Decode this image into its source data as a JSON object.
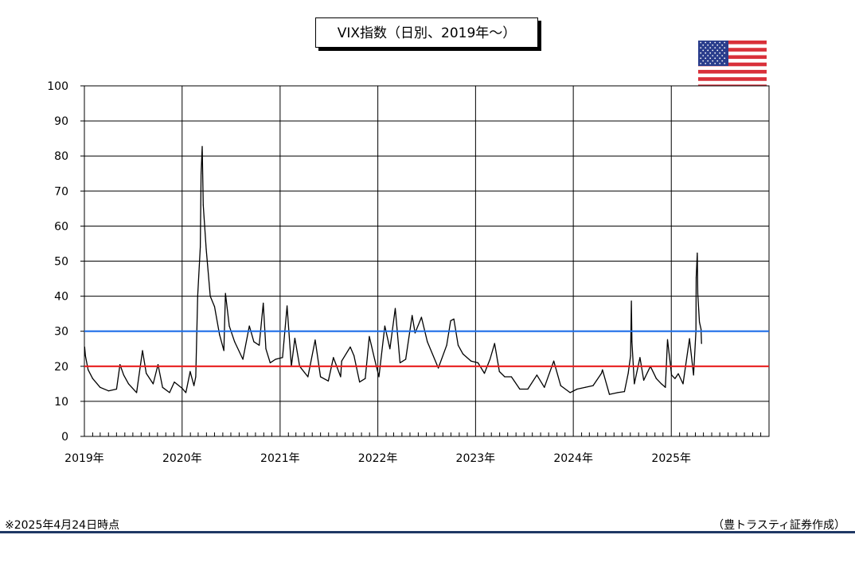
{
  "chart_data": {
    "type": "line",
    "title": "VIX指数（日別、2019年～）",
    "x_tick_labels": [
      "2019年",
      "2020年",
      "2021年",
      "2022年",
      "2023年",
      "2024年",
      "2025年"
    ],
    "y_tick_labels": [
      "0",
      "10",
      "20",
      "30",
      "40",
      "50",
      "60",
      "70",
      "80",
      "90",
      "100"
    ],
    "ylim": [
      0,
      100
    ],
    "xlim": [
      "2019-01-01",
      "2026-01-01"
    ],
    "grid": true,
    "series": [
      {
        "color": "#000000",
        "points": [
          [
            "2019-01-02",
            25.5
          ],
          [
            "2019-01-05",
            23.0
          ],
          [
            "2019-01-15",
            19.0
          ],
          [
            "2019-02-01",
            16.5
          ],
          [
            "2019-03-01",
            14.0
          ],
          [
            "2019-04-01",
            13.0
          ],
          [
            "2019-05-01",
            13.5
          ],
          [
            "2019-05-14",
            20.5
          ],
          [
            "2019-05-28",
            17.5
          ],
          [
            "2019-06-15",
            15.0
          ],
          [
            "2019-07-15",
            12.5
          ],
          [
            "2019-08-06",
            24.5
          ],
          [
            "2019-08-20",
            18.0
          ],
          [
            "2019-09-15",
            15.0
          ],
          [
            "2019-10-03",
            20.5
          ],
          [
            "2019-10-20",
            14.0
          ],
          [
            "2019-11-15",
            12.5
          ],
          [
            "2019-12-03",
            15.5
          ],
          [
            "2019-12-31",
            13.8
          ],
          [
            "2020-01-15",
            12.5
          ],
          [
            "2020-01-31",
            18.5
          ],
          [
            "2020-02-14",
            14.5
          ],
          [
            "2020-02-21",
            17.0
          ],
          [
            "2020-02-28",
            40.0
          ],
          [
            "2020-03-09",
            54.0
          ],
          [
            "2020-03-12",
            75.0
          ],
          [
            "2020-03-16",
            82.7
          ],
          [
            "2020-03-20",
            66.0
          ],
          [
            "2020-03-31",
            53.5
          ],
          [
            "2020-04-15",
            40.0
          ],
          [
            "2020-05-01",
            37.0
          ],
          [
            "2020-05-20",
            29.0
          ],
          [
            "2020-06-05",
            24.5
          ],
          [
            "2020-06-11",
            40.8
          ],
          [
            "2020-06-25",
            31.5
          ],
          [
            "2020-07-15",
            27.0
          ],
          [
            "2020-08-15",
            22.0
          ],
          [
            "2020-09-08",
            31.5
          ],
          [
            "2020-09-25",
            27.0
          ],
          [
            "2020-10-15",
            26.0
          ],
          [
            "2020-10-30",
            38.0
          ],
          [
            "2020-11-09",
            25.0
          ],
          [
            "2020-11-25",
            21.0
          ],
          [
            "2020-12-15",
            22.0
          ],
          [
            "2021-01-10",
            22.5
          ],
          [
            "2021-01-27",
            37.2
          ],
          [
            "2021-02-12",
            20.0
          ],
          [
            "2021-02-25",
            28.0
          ],
          [
            "2021-03-15",
            20.0
          ],
          [
            "2021-04-15",
            17.0
          ],
          [
            "2021-05-12",
            27.5
          ],
          [
            "2021-06-01",
            17.0
          ],
          [
            "2021-06-30",
            15.8
          ],
          [
            "2021-07-19",
            22.5
          ],
          [
            "2021-08-15",
            17.0
          ],
          [
            "2021-08-19",
            21.5
          ],
          [
            "2021-09-20",
            25.5
          ],
          [
            "2021-10-04",
            23.0
          ],
          [
            "2021-10-25",
            15.5
          ],
          [
            "2021-11-15",
            16.5
          ],
          [
            "2021-11-30",
            28.5
          ],
          [
            "2021-12-20",
            22.0
          ],
          [
            "2022-01-05",
            17.0
          ],
          [
            "2022-01-27",
            31.5
          ],
          [
            "2022-02-15",
            25.0
          ],
          [
            "2022-03-07",
            36.5
          ],
          [
            "2022-03-25",
            21.0
          ],
          [
            "2022-04-15",
            22.0
          ],
          [
            "2022-05-09",
            34.5
          ],
          [
            "2022-05-20",
            29.5
          ],
          [
            "2022-06-13",
            34.0
          ],
          [
            "2022-07-05",
            27.0
          ],
          [
            "2022-08-15",
            19.5
          ],
          [
            "2022-09-15",
            26.0
          ],
          [
            "2022-09-30",
            33.0
          ],
          [
            "2022-10-12",
            33.5
          ],
          [
            "2022-10-28",
            26.0
          ],
          [
            "2022-11-15",
            23.5
          ],
          [
            "2022-12-15",
            21.5
          ],
          [
            "2023-01-10",
            21.0
          ],
          [
            "2023-02-03",
            18.0
          ],
          [
            "2023-02-24",
            22.0
          ],
          [
            "2023-03-13",
            26.5
          ],
          [
            "2023-03-31",
            18.5
          ],
          [
            "2023-04-20",
            17.0
          ],
          [
            "2023-05-15",
            17.0
          ],
          [
            "2023-06-15",
            13.5
          ],
          [
            "2023-07-15",
            13.5
          ],
          [
            "2023-08-18",
            17.5
          ],
          [
            "2023-09-15",
            14.0
          ],
          [
            "2023-10-20",
            21.5
          ],
          [
            "2023-11-15",
            14.5
          ],
          [
            "2023-12-20",
            12.5
          ],
          [
            "2024-01-15",
            13.5
          ],
          [
            "2024-02-15",
            14.0
          ],
          [
            "2024-03-15",
            14.5
          ],
          [
            "2024-04-15",
            18.0
          ],
          [
            "2024-04-19",
            19.0
          ],
          [
            "2024-05-15",
            12.0
          ],
          [
            "2024-06-15",
            12.5
          ],
          [
            "2024-07-10",
            12.8
          ],
          [
            "2024-07-24",
            18.0
          ],
          [
            "2024-08-02",
            23.0
          ],
          [
            "2024-08-05",
            38.6
          ],
          [
            "2024-08-07",
            27.0
          ],
          [
            "2024-08-16",
            15.0
          ],
          [
            "2024-09-06",
            22.5
          ],
          [
            "2024-09-20",
            16.0
          ],
          [
            "2024-10-15",
            20.0
          ],
          [
            "2024-11-06",
            16.5
          ],
          [
            "2024-11-25",
            15.0
          ],
          [
            "2024-12-10",
            14.0
          ],
          [
            "2024-12-18",
            27.6
          ],
          [
            "2025-01-02",
            17.5
          ],
          [
            "2025-01-15",
            16.5
          ],
          [
            "2025-01-27",
            17.9
          ],
          [
            "2025-02-14",
            15.0
          ],
          [
            "2025-03-10",
            27.9
          ],
          [
            "2025-03-25",
            17.5
          ],
          [
            "2025-04-03",
            30.0
          ],
          [
            "2025-04-04",
            45.3
          ],
          [
            "2025-04-08",
            52.3
          ],
          [
            "2025-04-10",
            40.7
          ],
          [
            "2025-04-16",
            32.6
          ],
          [
            "2025-04-22",
            30.6
          ],
          [
            "2025-04-24",
            26.5
          ]
        ]
      },
      {
        "color": "#1e6ee8",
        "points": [
          [
            "2019-01-01",
            30
          ],
          [
            "2026-01-01",
            30
          ]
        ]
      },
      {
        "color": "#e81e1e",
        "points": [
          [
            "2019-01-01",
            20
          ],
          [
            "2026-01-01",
            20
          ]
        ]
      }
    ]
  },
  "footnote": "※2025年4月24日時点",
  "credit": "（豊トラスティ証券作成）",
  "colors": {
    "accent_rule": "#1f3864",
    "grid": "#000000"
  },
  "flag_icon": "us-flag-icon"
}
